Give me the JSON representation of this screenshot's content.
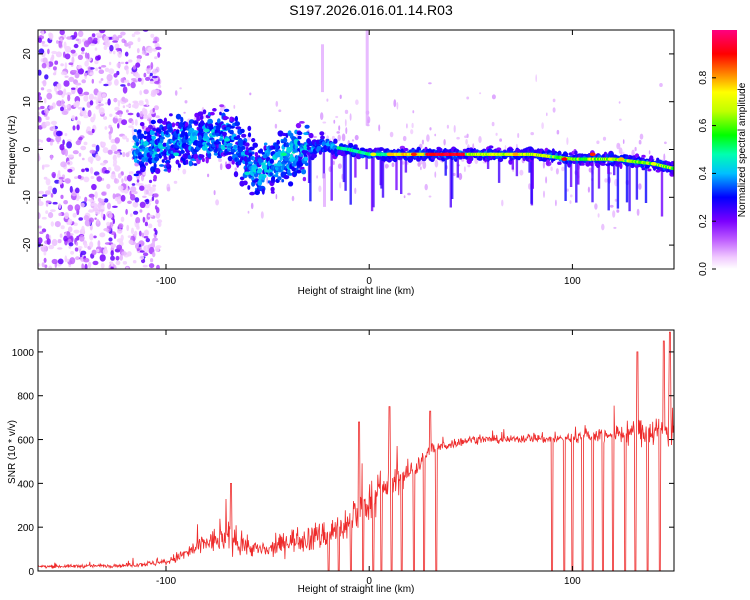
{
  "title": "S197.2026.016.01.14.R03",
  "colors": {
    "snr_line": "#ee2b2b",
    "frame": "#000000",
    "background": "#ffffff"
  },
  "chart_data": [
    {
      "type": "heatmap",
      "name": "spectrogram",
      "xlabel": "Height of straight line (km)",
      "ylabel": "Frequency (Hz)",
      "xlim": [
        -163,
        150
      ],
      "ylim": [
        -25,
        25
      ],
      "xticks": [
        -100,
        0,
        100
      ],
      "yticks": [
        20,
        10,
        0,
        -10,
        -20
      ],
      "colorbar": {
        "label": "Normalized spectral amplitude",
        "range": [
          0,
          1
        ],
        "ticks": [
          "0.0",
          "0.2",
          "0.4",
          "0.6",
          "0.8"
        ],
        "colormap": [
          "#ffffff",
          "#ff00ff",
          "#7b00ff",
          "#0000ff",
          "#00ffff",
          "#00ff00",
          "#ffff00",
          "#ff8000",
          "#ff0000",
          "#ff0080"
        ]
      },
      "ridge": {
        "description_points_x": [
          -110,
          -90,
          -70,
          -55,
          -40,
          -25,
          -10,
          0,
          20,
          40,
          60,
          80,
          100,
          120,
          140,
          150
        ],
        "description_points_freq": [
          0,
          2,
          3,
          -5,
          -1,
          1,
          0,
          -1,
          -1,
          -1,
          -1,
          -1,
          -2,
          -2,
          -3,
          -4
        ],
        "peak_amplitude": 0.95
      }
    },
    {
      "type": "line",
      "name": "snr",
      "xlabel": "Height of straight line (km)",
      "ylabel": "SNR (10 * v/v)",
      "xlim": [
        -163,
        150
      ],
      "ylim": [
        0,
        1100
      ],
      "xticks": [
        -100,
        0,
        100
      ],
      "yticks": [
        0,
        200,
        400,
        600,
        800,
        1000
      ],
      "envelope_x": [
        -163,
        -120,
        -100,
        -90,
        -80,
        -70,
        -60,
        -50,
        -40,
        -30,
        -20,
        -10,
        0,
        10,
        20,
        30,
        40,
        50,
        60,
        70,
        80,
        90,
        100,
        110,
        120,
        130,
        140,
        150
      ],
      "envelope_median": [
        20,
        25,
        40,
        80,
        130,
        150,
        110,
        90,
        140,
        150,
        170,
        220,
        320,
        400,
        450,
        550,
        580,
        600,
        600,
        600,
        610,
        600,
        610,
        620,
        620,
        630,
        640,
        650
      ],
      "envelope_spread": [
        12,
        15,
        25,
        60,
        90,
        110,
        70,
        60,
        90,
        110,
        120,
        140,
        150,
        110,
        100,
        60,
        40,
        30,
        30,
        30,
        40,
        40,
        40,
        60,
        70,
        90,
        120,
        150
      ],
      "dropout_x": [
        -20,
        -15,
        -9,
        -3,
        2,
        6,
        11,
        16,
        22,
        27,
        33,
        90,
        96,
        100,
        105,
        110,
        115,
        120,
        126,
        131,
        137,
        143,
        148
      ],
      "spikes": [
        [
          -68,
          400
        ],
        [
          -5,
          680
        ],
        [
          10,
          750
        ],
        [
          30,
          730
        ],
        [
          132,
          1000
        ],
        [
          145,
          1050
        ],
        [
          148,
          1090
        ]
      ]
    }
  ]
}
